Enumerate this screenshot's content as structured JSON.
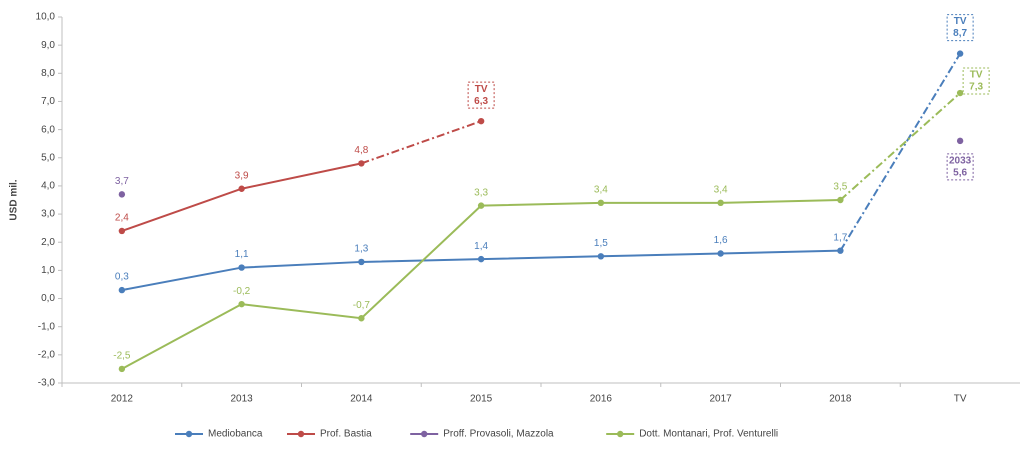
{
  "chart_data": {
    "type": "line",
    "y_label": "USD mil.",
    "categories": [
      "2012",
      "2013",
      "2014",
      "2015",
      "2016",
      "2017",
      "2018",
      "TV"
    ],
    "ylim": [
      -3,
      10
    ],
    "yticks": [
      {
        "value": -3,
        "label": "-3,0"
      },
      {
        "value": -2,
        "label": "-2,0"
      },
      {
        "value": -1,
        "label": "-1,0"
      },
      {
        "value": 0,
        "label": "0,0"
      },
      {
        "value": 1,
        "label": "1,0"
      },
      {
        "value": 2,
        "label": "2,0"
      },
      {
        "value": 3,
        "label": "3,0"
      },
      {
        "value": 4,
        "label": "4,0"
      },
      {
        "value": 5,
        "label": "5,0"
      },
      {
        "value": 6,
        "label": "6,0"
      },
      {
        "value": 7,
        "label": "7,0"
      },
      {
        "value": 8,
        "label": "8,0"
      },
      {
        "value": 9,
        "label": "9,0"
      },
      {
        "value": 10,
        "label": "10,0"
      }
    ],
    "grid": false,
    "legend": "bottom",
    "series": [
      {
        "name": "Mediobanca",
        "color": "#4a7ebb",
        "box_title": "TV",
        "values": [
          0.3,
          1.1,
          1.3,
          1.4,
          1.5,
          1.6,
          1.7,
          8.7
        ],
        "value_labels": [
          "0,3",
          "1,1",
          "1,3",
          "1,4",
          "1,5",
          "1,6",
          "1,7",
          "8,7"
        ]
      },
      {
        "name": "Prof. Bastia",
        "color": "#be4b48",
        "box_title": "TV",
        "values": [
          2.4,
          3.9,
          4.8,
          6.3,
          null,
          null,
          null,
          null
        ],
        "value_labels": [
          "2,4",
          "3,9",
          "4,8",
          "6,3",
          null,
          null,
          null,
          null
        ]
      },
      {
        "name": "Proff. Provasoli, Mazzola",
        "color": "#7e62a1",
        "box_title": "2033",
        "values": [
          3.7,
          null,
          null,
          null,
          null,
          null,
          null,
          5.6
        ],
        "value_labels": [
          "3,7",
          null,
          null,
          null,
          null,
          null,
          null,
          "5,6"
        ]
      },
      {
        "name": "Dott. Montanari, Prof. Venturelli",
        "color": "#9bbb59",
        "box_title": "TV",
        "values": [
          -2.5,
          -0.2,
          -0.7,
          3.3,
          3.4,
          3.4,
          3.5,
          7.3
        ],
        "value_labels": [
          "-2,5",
          "-0,2",
          "-0,7",
          "3,3",
          "3,4",
          "3,4",
          "3,5",
          "7,3"
        ]
      }
    ]
  }
}
